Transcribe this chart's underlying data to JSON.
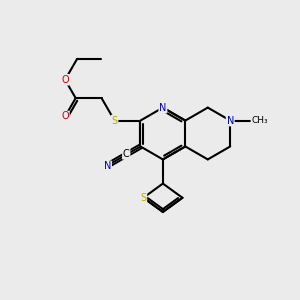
{
  "background_color": "#ebebeb",
  "atom_colors": {
    "C": "#000000",
    "N": "#0000cc",
    "O": "#cc0000",
    "S": "#bbaa00",
    "H": "#000000"
  },
  "figsize": [
    3.0,
    3.0
  ],
  "dpi": 100,
  "lw": 1.5
}
